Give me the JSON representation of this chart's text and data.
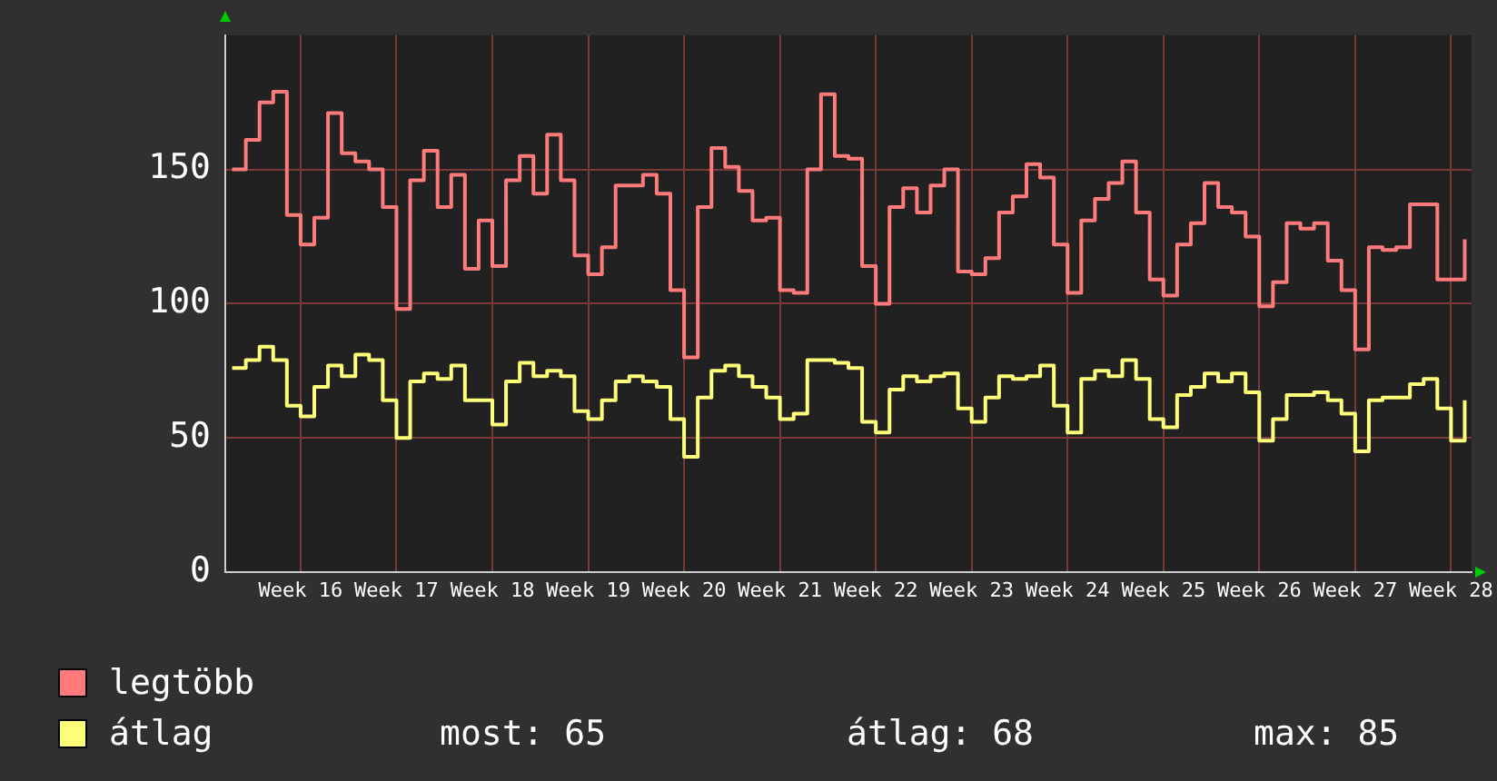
{
  "chart_data": {
    "type": "step",
    "categories": [
      null,
      null,
      null,
      null,
      null,
      "Week 16",
      null,
      null,
      null,
      null,
      null,
      null,
      "Week 17",
      null,
      null,
      null,
      null,
      null,
      null,
      "Week 18",
      null,
      null,
      null,
      null,
      null,
      null,
      "Week 19",
      null,
      null,
      null,
      null,
      null,
      null,
      "Week 20",
      null,
      null,
      null,
      null,
      null,
      null,
      "Week 21",
      null,
      null,
      null,
      null,
      null,
      null,
      "Week 22",
      null,
      null,
      null,
      null,
      null,
      null,
      "Week 23",
      null,
      null,
      null,
      null,
      null,
      null,
      "Week 24",
      null,
      null,
      null,
      null,
      null,
      null,
      "Week 25",
      null,
      null,
      null,
      null,
      null,
      null,
      "Week 26",
      null,
      null,
      null,
      null,
      null,
      null,
      "Week 27",
      null,
      null,
      null,
      null,
      null,
      null,
      "Week 28",
      null
    ],
    "series": [
      {
        "name": "legtöbb",
        "color": "#ff7b7b",
        "values": [
          150,
          161,
          175,
          179,
          133,
          122,
          132,
          171,
          156,
          153,
          150,
          136,
          98,
          146,
          157,
          136,
          148,
          113,
          131,
          114,
          146,
          155,
          141,
          163,
          146,
          118,
          111,
          121,
          144,
          144,
          148,
          141,
          105,
          80,
          136,
          158,
          151,
          142,
          131,
          132,
          105,
          104,
          150,
          178,
          155,
          154,
          114,
          100,
          136,
          143,
          134,
          144,
          150,
          112,
          111,
          117,
          134,
          140,
          152,
          147,
          122,
          104,
          131,
          139,
          145,
          153,
          134,
          109,
          103,
          122,
          130,
          145,
          136,
          134,
          125,
          99,
          108,
          130,
          128,
          130,
          116,
          105,
          83,
          121,
          120,
          121,
          137,
          137,
          109,
          109,
          124
        ]
      },
      {
        "name": "átlag",
        "color": "#ffff7a",
        "values": [
          76,
          79,
          84,
          79,
          62,
          58,
          69,
          77,
          73,
          81,
          79,
          64,
          50,
          71,
          74,
          72,
          77,
          64,
          64,
          55,
          71,
          78,
          73,
          75,
          73,
          60,
          57,
          64,
          71,
          73,
          71,
          69,
          57,
          43,
          65,
          75,
          77,
          73,
          69,
          65,
          57,
          59,
          79,
          79,
          78,
          76,
          56,
          52,
          68,
          73,
          71,
          73,
          74,
          61,
          56,
          65,
          73,
          72,
          73,
          77,
          62,
          52,
          72,
          75,
          73,
          79,
          72,
          57,
          54,
          66,
          69,
          74,
          71,
          74,
          67,
          49,
          57,
          66,
          66,
          67,
          64,
          59,
          45,
          64,
          65,
          65,
          70,
          72,
          61,
          49,
          64
        ]
      }
    ],
    "ylim": [
      0,
      200
    ],
    "yticks": [
      0,
      50,
      100,
      150
    ],
    "grid": true,
    "legend": "bottom",
    "marker": "none",
    "line_style": "solid",
    "annotations": [
      "most: 65",
      "átlag: 68",
      "max: 85"
    ]
  }
}
